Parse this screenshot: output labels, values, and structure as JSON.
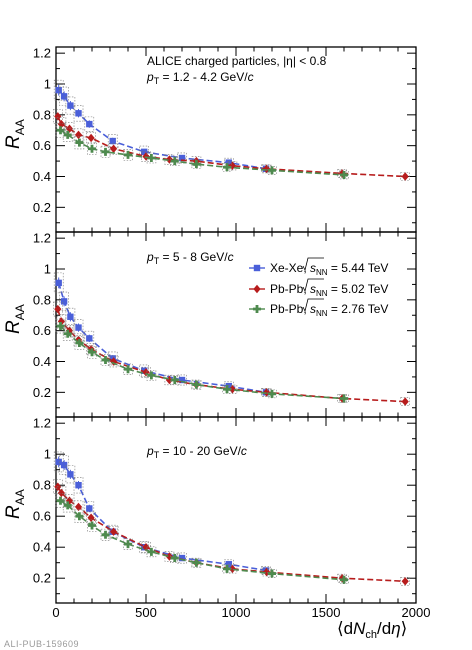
{
  "colors": {
    "xexe": "#4a5fd9",
    "pbpb502": "#b71c1c",
    "pbpb276": "#4e8a4e",
    "syst": "#777777"
  },
  "pub_id": "ALI-PUB-159609",
  "header": {
    "experiment": "ALICE charged particles, |η| < 0.8"
  },
  "legend": [
    {
      "system": "Xe-Xe,",
      "sqrt": "s",
      "sub": "NN",
      "energy": "= 5.44 TeV",
      "series": 0
    },
    {
      "system": "Pb-Pb,",
      "sqrt": "s",
      "sub": "NN",
      "energy": "= 5.02 TeV",
      "series": 1
    },
    {
      "system": "Pb-Pb,",
      "sqrt": "s",
      "sub": "NN",
      "energy": "= 2.76 TeV",
      "series": 2
    }
  ],
  "chart_data": [
    {
      "type": "scatter",
      "pt_range": "= 1.2 - 4.2 GeV/",
      "xlabel": "⟨dNch/dη⟩",
      "ylabel": "RAA",
      "xlim": [
        0,
        2000
      ],
      "ylim": [
        0.04,
        1.24
      ],
      "yticks": [
        0.2,
        0.4,
        0.6,
        0.8,
        1,
        1.2
      ],
      "xticks": [
        0,
        500,
        1000,
        1500,
        2000
      ],
      "series": [
        {
          "name": "Xe-Xe, √sNN = 5.44 TeV",
          "x": [
            15,
            45,
            80,
            125,
            185,
            315,
            490,
            700,
            960,
            1167
          ],
          "y": [
            0.96,
            0.92,
            0.86,
            0.81,
            0.74,
            0.63,
            0.56,
            0.52,
            0.49,
            0.45
          ]
        },
        {
          "name": "Pb-Pb, √sNN = 5.02 TeV",
          "x": [
            10,
            30,
            75,
            125,
            195,
            320,
            500,
            630,
            780,
            980,
            1170,
            1590,
            1940
          ],
          "y": [
            0.79,
            0.74,
            0.71,
            0.67,
            0.65,
            0.58,
            0.53,
            0.51,
            0.5,
            0.47,
            0.45,
            0.42,
            0.4
          ]
        },
        {
          "name": "Pb-Pb, √sNN = 2.76 TeV",
          "x": [
            25,
            65,
            130,
            200,
            275,
            400,
            530,
            660,
            780,
            950,
            1200,
            1600
          ],
          "y": [
            0.7,
            0.67,
            0.62,
            0.58,
            0.56,
            0.54,
            0.52,
            0.5,
            0.48,
            0.46,
            0.44,
            0.41
          ]
        }
      ]
    },
    {
      "type": "scatter",
      "pt_range": "= 5 - 8 GeV/",
      "xlabel": "⟨dNch/dη⟩",
      "ylabel": "RAA",
      "xlim": [
        0,
        2000
      ],
      "ylim": [
        0.04,
        1.24
      ],
      "yticks": [
        0.2,
        0.4,
        0.6,
        0.8,
        1,
        1.2
      ],
      "xticks": [
        0,
        500,
        1000,
        1500,
        2000
      ],
      "series": [
        {
          "name": "Xe-Xe, √sNN = 5.44 TeV",
          "x": [
            15,
            45,
            80,
            125,
            185,
            315,
            490,
            700,
            960,
            1167
          ],
          "y": [
            0.91,
            0.79,
            0.69,
            0.62,
            0.55,
            0.42,
            0.34,
            0.28,
            0.24,
            0.2
          ]
        },
        {
          "name": "Pb-Pb, √sNN = 5.02 TeV",
          "x": [
            10,
            30,
            75,
            125,
            195,
            320,
            500,
            630,
            780,
            980,
            1170,
            1590,
            1940
          ],
          "y": [
            0.74,
            0.66,
            0.6,
            0.54,
            0.48,
            0.4,
            0.33,
            0.28,
            0.25,
            0.22,
            0.2,
            0.16,
            0.14
          ]
        },
        {
          "name": "Pb-Pb, √sNN = 2.76 TeV",
          "x": [
            25,
            65,
            130,
            200,
            275,
            400,
            530,
            660,
            780,
            950,
            1200,
            1600
          ],
          "y": [
            0.63,
            0.58,
            0.52,
            0.46,
            0.41,
            0.35,
            0.31,
            0.28,
            0.25,
            0.22,
            0.19,
            0.16
          ]
        }
      ]
    },
    {
      "type": "scatter",
      "pt_range": "= 10 - 20 GeV/",
      "xlabel": "⟨dNch/dη⟩",
      "ylabel": "RAA",
      "xlim": [
        0,
        2000
      ],
      "ylim": [
        0.04,
        1.24
      ],
      "yticks": [
        0.2,
        0.4,
        0.6,
        0.8,
        1,
        1.2
      ],
      "xticks": [
        0,
        500,
        1000,
        1500,
        2000
      ],
      "series": [
        {
          "name": "Xe-Xe, √sNN = 5.44 TeV",
          "x": [
            15,
            45,
            80,
            125,
            185,
            315,
            490,
            700,
            960,
            1167
          ],
          "y": [
            0.95,
            0.93,
            0.87,
            0.8,
            0.65,
            0.5,
            0.4,
            0.33,
            0.29,
            0.25
          ]
        },
        {
          "name": "Pb-Pb, √sNN = 5.02 TeV",
          "x": [
            10,
            30,
            75,
            125,
            195,
            320,
            500,
            630,
            780,
            980,
            1170,
            1590,
            1940
          ],
          "y": [
            0.79,
            0.75,
            0.7,
            0.66,
            0.59,
            0.5,
            0.4,
            0.34,
            0.3,
            0.26,
            0.24,
            0.2,
            0.18
          ]
        },
        {
          "name": "Pb-Pb, √sNN = 2.76 TeV",
          "x": [
            25,
            65,
            130,
            200,
            275,
            400,
            530,
            660,
            780,
            950,
            1200,
            1600
          ],
          "y": [
            0.7,
            0.67,
            0.6,
            0.54,
            0.48,
            0.42,
            0.37,
            0.33,
            0.3,
            0.26,
            0.23,
            0.19
          ]
        }
      ]
    }
  ]
}
